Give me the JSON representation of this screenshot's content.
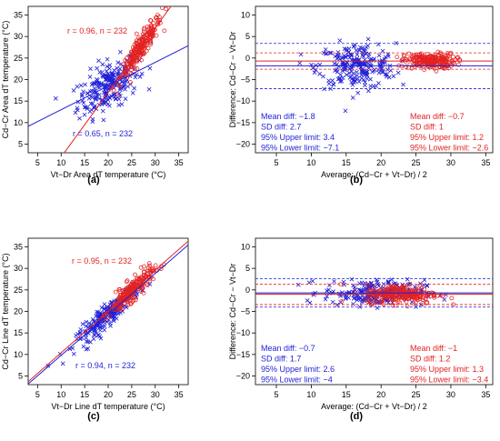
{
  "colors": {
    "blue": "#1f1fd8",
    "red": "#e32222",
    "axis": "#000000"
  },
  "chart_data": [
    {
      "id": "a",
      "type": "scatter",
      "caption": "(a)",
      "xlabel": "Vt−Dr Area dT temperature (°C)",
      "ylabel": "Cd−Cr Area dT temperature (°C)",
      "xlim": [
        3,
        37
      ],
      "ylim": [
        3,
        37
      ],
      "xticks": [
        5,
        10,
        15,
        20,
        25,
        30,
        35
      ],
      "yticks": [
        5,
        10,
        15,
        20,
        25,
        30,
        35
      ],
      "annotations": [
        {
          "text": "r = 0.96, n = 232",
          "color": "red"
        },
        {
          "text": "r = 0.65, n = 232",
          "color": "blue"
        }
      ],
      "series": [
        {
          "color": "blue",
          "marker": "x",
          "fit": {
            "intercept": 7.5,
            "slope": 0.55
          }
        },
        {
          "color": "red",
          "marker": "o",
          "fit": {
            "intercept": -13,
            "slope": 1.5
          }
        }
      ]
    },
    {
      "id": "b",
      "type": "scatter",
      "caption": "(b)",
      "xlabel": "Average: (Cd−Cr + Vt−Dr) / 2",
      "ylabel": "Difference: Cd−Cr − Vt−Dr",
      "xlim": [
        2,
        36
      ],
      "ylim": [
        -22,
        12
      ],
      "xticks": [
        5,
        10,
        15,
        20,
        25,
        30,
        35
      ],
      "yticks": [
        10,
        5,
        0,
        -5,
        -10,
        -15,
        -20
      ],
      "stats": [
        {
          "color": "blue",
          "lines": [
            "Mean diff: −1.8",
            "SD diff: 2.7",
            "95% Upper limit: 3.4",
            "95% Lower limit: −7.1"
          ],
          "mean": -1.8,
          "upper": 3.4,
          "lower": -7.1
        },
        {
          "color": "red",
          "lines": [
            "Mean diff: −0.7",
            "SD diff: 1",
            "95% Upper limit: 1.2",
            "95% Lower limit: −2.6"
          ],
          "mean": -0.7,
          "upper": 1.2,
          "lower": -2.6
        }
      ]
    },
    {
      "id": "c",
      "type": "scatter",
      "caption": "(c)",
      "xlabel": "Vt−Dr Line dT temperature (°C)",
      "ylabel": "Cd−Cr Line dT temperature (°C)",
      "xlim": [
        3,
        37
      ],
      "ylim": [
        3,
        37
      ],
      "xticks": [
        5,
        10,
        15,
        20,
        25,
        30,
        35
      ],
      "yticks": [
        5,
        10,
        15,
        20,
        25,
        30,
        35
      ],
      "annotations": [
        {
          "text": "r = 0.95, n = 232",
          "color": "red"
        },
        {
          "text": "r = 0.94, n = 232",
          "color": "blue"
        }
      ],
      "series": [
        {
          "color": "blue",
          "marker": "x",
          "fit": {
            "intercept": 0.3,
            "slope": 0.95
          }
        },
        {
          "color": "red",
          "marker": "o",
          "fit": {
            "intercept": 0.8,
            "slope": 0.96
          }
        }
      ]
    },
    {
      "id": "d",
      "type": "scatter",
      "caption": "(d)",
      "xlabel": "Average: (Cd−Cr + Vt−Dr) / 2",
      "ylabel": "Difference: Cd−Cr − Vt−Dr",
      "xlim": [
        2,
        36
      ],
      "ylim": [
        -22,
        12
      ],
      "xticks": [
        5,
        10,
        15,
        20,
        25,
        30,
        35
      ],
      "yticks": [
        10,
        5,
        0,
        -5,
        -10,
        -15,
        -20
      ],
      "stats": [
        {
          "color": "blue",
          "lines": [
            "Mean diff: −0.7",
            "SD diff: 1.7",
            "95% Upper limit: 2.6",
            "95% Lower limit: −4"
          ],
          "mean": -0.7,
          "upper": 2.6,
          "lower": -4
        },
        {
          "color": "red",
          "lines": [
            "Mean diff: −1",
            "SD diff: 1.2",
            "95% Upper limit: 1.3",
            "95% Lower limit: −3.4"
          ],
          "mean": -1,
          "upper": 1.3,
          "lower": -3.4
        }
      ]
    }
  ]
}
